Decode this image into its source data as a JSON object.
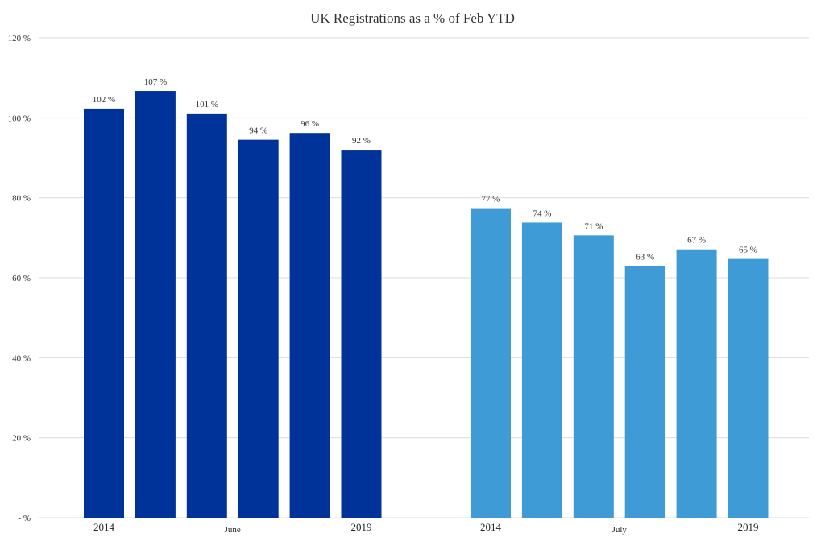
{
  "chart_data": {
    "type": "bar",
    "title": "UK Registrations as a % of Feb YTD",
    "xlabel": "",
    "ylabel": "",
    "ylim": [
      0,
      120
    ],
    "yticks": [
      {
        "value": 0,
        "label": "- %"
      },
      {
        "value": 20,
        "label": "20 %"
      },
      {
        "value": 40,
        "label": "40 %"
      },
      {
        "value": 60,
        "label": "60 %"
      },
      {
        "value": 80,
        "label": "80 %"
      },
      {
        "value": 100,
        "label": "100 %"
      },
      {
        "value": 120,
        "label": "120 %"
      }
    ],
    "grid": true,
    "groups": [
      {
        "name": "June",
        "color": "#003399",
        "first_year_label": "2014",
        "last_year_label": "2019",
        "values": [
          102.3,
          106.7,
          101.1,
          94.5,
          96.2,
          92.0
        ],
        "labels": [
          "102 %",
          "107 %",
          "101 %",
          "94 %",
          "96 %",
          "92 %"
        ]
      },
      {
        "name": "July",
        "color": "#3f9bd5",
        "first_year_label": "2014",
        "last_year_label": "2019",
        "values": [
          77.4,
          73.8,
          70.6,
          62.9,
          67.1,
          64.7
        ],
        "labels": [
          "77 %",
          "74 %",
          "71 %",
          "63 %",
          "67 %",
          "65 %"
        ]
      }
    ]
  }
}
